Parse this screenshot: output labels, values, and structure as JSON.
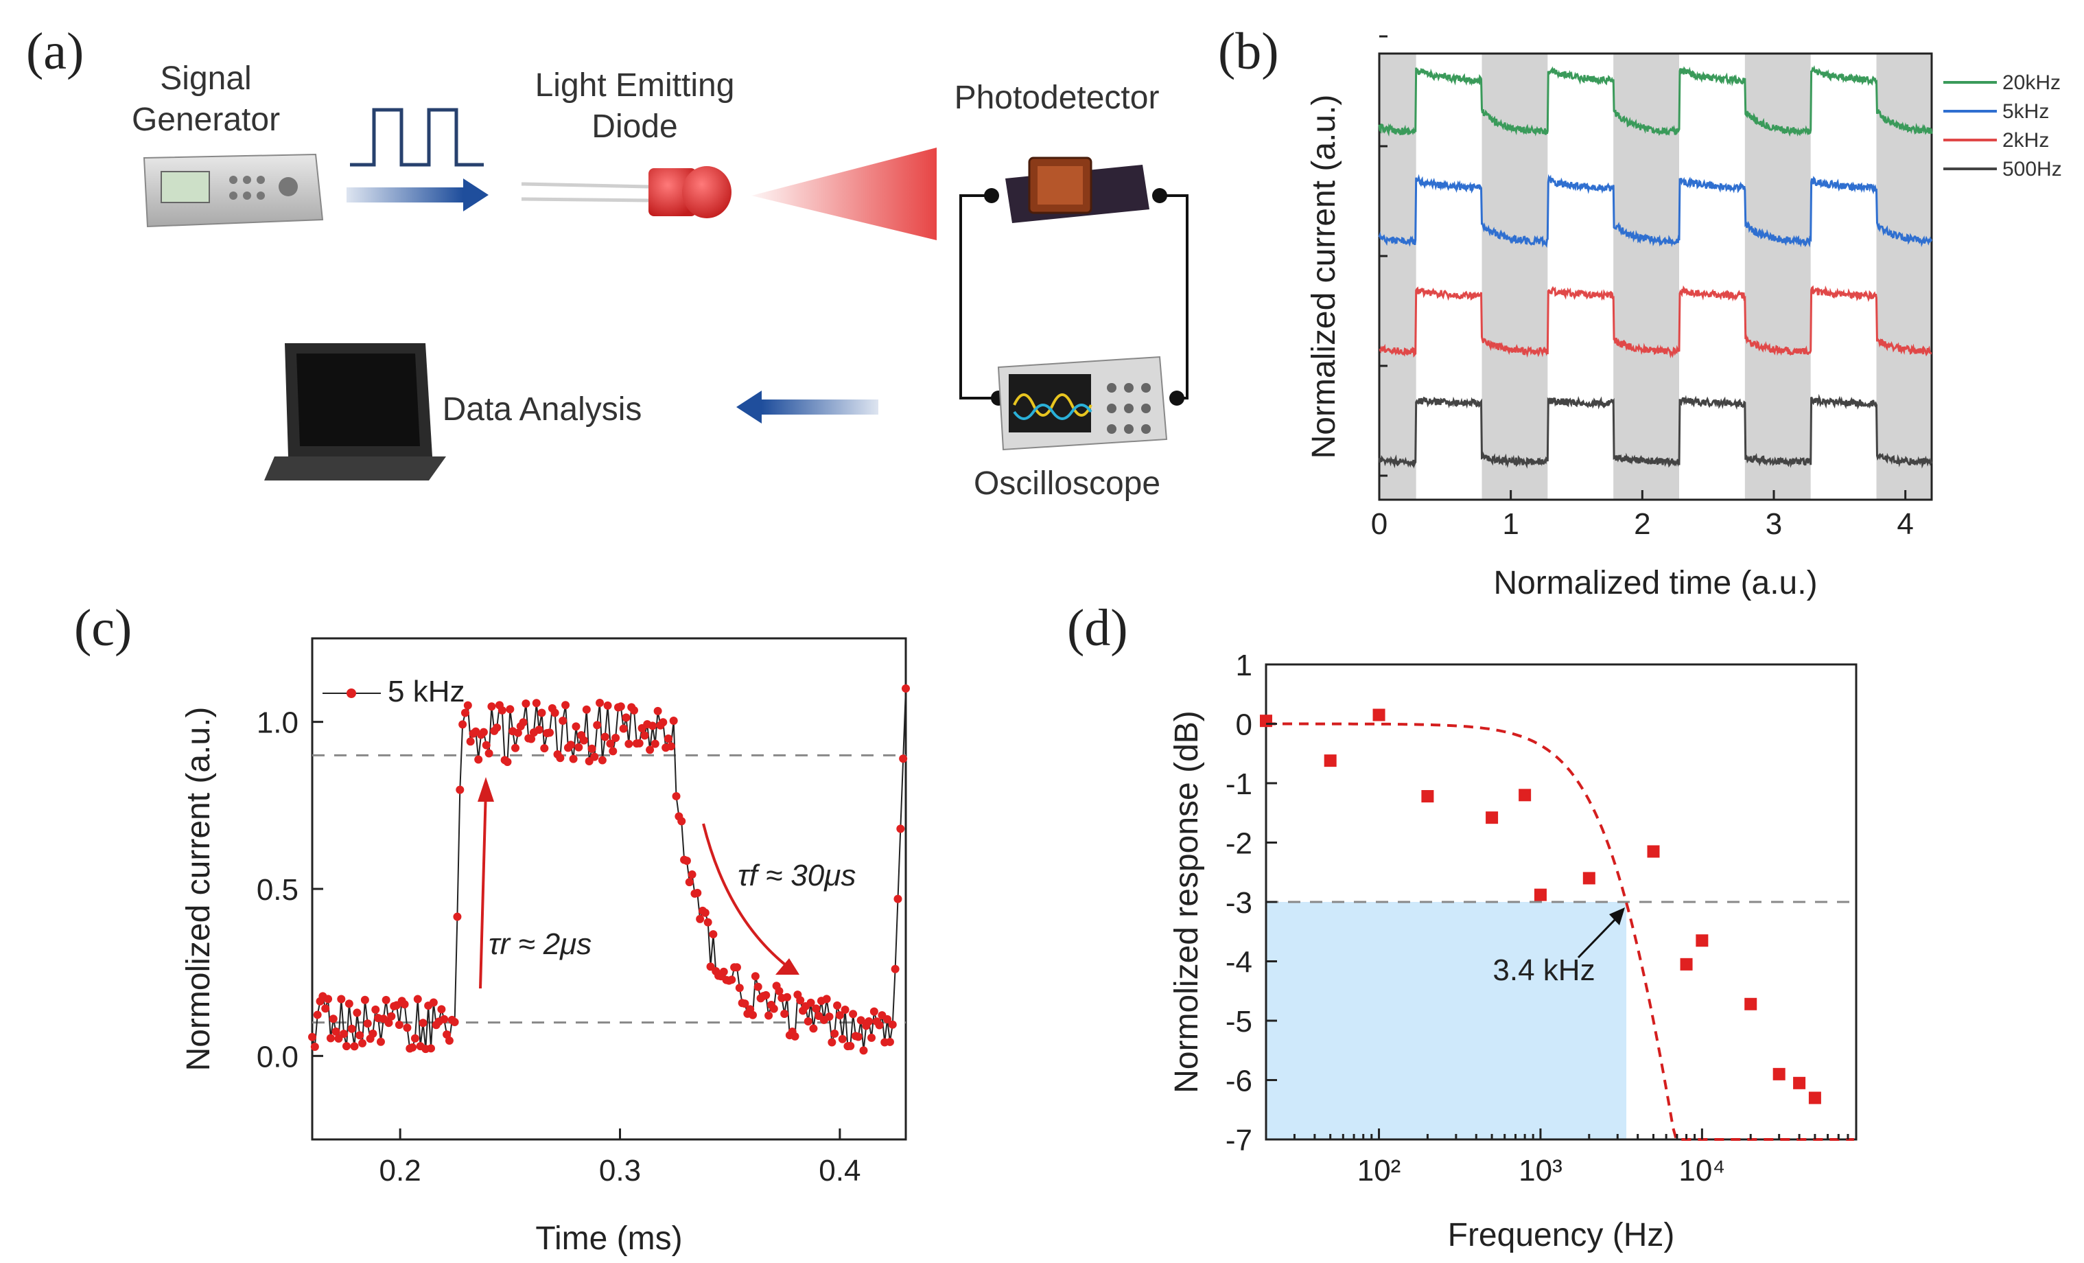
{
  "panels": {
    "a": {
      "label": "(a)",
      "signal_generator": [
        "Signal",
        "Generator"
      ],
      "led": [
        "Light Emitting",
        "Diode"
      ],
      "photodetector": "Photodetector",
      "oscilloscope": "Oscilloscope",
      "data_analysis": "Data Analysis",
      "colors": {
        "arrow": "#1f4e9c",
        "light": "#e63b3b"
      }
    },
    "b": {
      "label": "(b)"
    },
    "c": {
      "label": "(c)",
      "annot_rise": "τr ≈ 2μs",
      "annot_fall": "τf ≈ 30μs"
    },
    "d": {
      "label": "(d)",
      "annot": "3.4 kHz"
    }
  },
  "chart_data": [
    {
      "panel": "b",
      "type": "line",
      "title": "",
      "xlabel": "Normalized time (a.u.)",
      "ylabel": "Normalized current (a.u.)",
      "xlim": [
        0,
        4.2
      ],
      "xticks": [
        "0",
        "1",
        "2",
        "3",
        "4"
      ],
      "grid": false,
      "legend_position": "right",
      "shaded_intervals": [
        [
          0,
          0.28
        ],
        [
          0.78,
          1.28
        ],
        [
          1.78,
          2.28
        ],
        [
          2.78,
          3.28
        ],
        [
          3.78,
          4.2
        ]
      ],
      "series": [
        {
          "name": "20kHz",
          "color": "#3a9a5a",
          "offset": 3,
          "rise": 0.18,
          "fall": 0.35
        },
        {
          "name": "5kHz",
          "color": "#2f6fd0",
          "offset": 2,
          "rise": 0.14,
          "fall": 0.3
        },
        {
          "name": "2kHz",
          "color": "#e04848",
          "offset": 1,
          "rise": 0.1,
          "fall": 0.2
        },
        {
          "name": "500Hz",
          "color": "#444444",
          "offset": 0,
          "rise": 0.06,
          "fall": 0.08
        }
      ]
    },
    {
      "panel": "c",
      "type": "line",
      "title": "",
      "xlabel": "Time (ms)",
      "ylabel": "Normolized current (a.u.)",
      "xlim": [
        0.16,
        0.43
      ],
      "ylim": [
        -0.25,
        1.25
      ],
      "xticks": [
        "0.2",
        "0.3",
        "0.4"
      ],
      "yticks": [
        "0.0",
        "0.5",
        "1.0"
      ],
      "hlines": [
        0.1,
        0.9
      ],
      "legend": "5 kHz",
      "legend_position": "top-left",
      "series_color": "#e02020",
      "segments": [
        {
          "x0": 0.16,
          "x1": 0.225,
          "level": 0.1
        },
        {
          "x0": 0.225,
          "x1": 0.228,
          "level_from": 0.1,
          "level_to": 1.05
        },
        {
          "x0": 0.228,
          "x1": 0.325,
          "level": 0.98
        },
        {
          "x0": 0.325,
          "x1": 0.43,
          "decay_from": 0.98,
          "decay_to": 0.05,
          "tau": 0.02
        },
        {
          "x0": 0.425,
          "x1": 0.43,
          "level_from": 0.05,
          "level_to": 1.1
        }
      ]
    },
    {
      "panel": "d",
      "type": "scatter",
      "title": "",
      "xlabel": "Frequency (Hz)",
      "ylabel": "Normolized response (dB)",
      "xscale": "log",
      "xlim": [
        20,
        90000
      ],
      "ylim": [
        -7,
        1
      ],
      "xticks": [
        "10²",
        "10³",
        "10⁴"
      ],
      "yticks": [
        "1",
        "0",
        "-1",
        "-2",
        "-3",
        "-4",
        "-5",
        "-6",
        "-7"
      ],
      "hline": -3,
      "cutoff_hz": 3400,
      "series_color": "#e02020",
      "fill_color": "#cfe9fb",
      "points": [
        [
          20,
          0.05
        ],
        [
          50,
          -0.62
        ],
        [
          100,
          0.15
        ],
        [
          200,
          -1.22
        ],
        [
          500,
          -1.58
        ],
        [
          800,
          -1.2
        ],
        [
          1000,
          -2.88
        ],
        [
          2000,
          -2.6
        ],
        [
          5000,
          -2.15
        ],
        [
          8000,
          -4.05
        ],
        [
          10000,
          -3.65
        ],
        [
          20000,
          -4.72
        ],
        [
          30000,
          -5.9
        ],
        [
          40000,
          -6.05
        ],
        [
          50000,
          -6.3
        ]
      ],
      "fit": {
        "type": "first-order low-pass",
        "fc": 3400
      }
    }
  ]
}
